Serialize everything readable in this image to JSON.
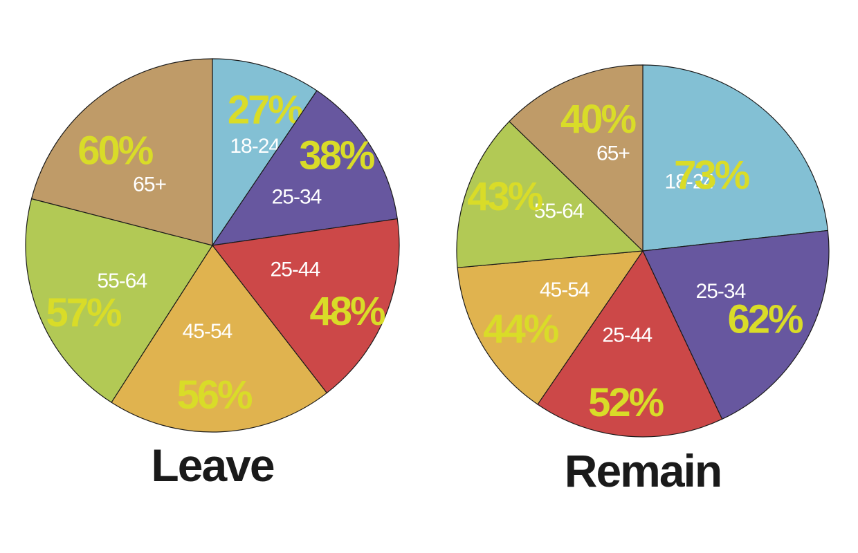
{
  "chart_data": [
    {
      "type": "pie",
      "title": "Leave",
      "unit": "%",
      "slices": [
        {
          "category": "18-24",
          "value": 27,
          "color": "#83c0d4"
        },
        {
          "category": "25-34",
          "value": 38,
          "color": "#67579f"
        },
        {
          "category": "25-44",
          "value": 48,
          "color": "#cc4848"
        },
        {
          "category": "45-54",
          "value": 56,
          "color": "#e0b34f"
        },
        {
          "category": "55-64",
          "value": 57,
          "color": "#b2c955"
        },
        {
          "category": "65+",
          "value": 60,
          "color": "#bf9b68"
        }
      ]
    },
    {
      "type": "pie",
      "title": "Remain",
      "unit": "%",
      "slices": [
        {
          "category": "18-24",
          "value": 73,
          "color": "#83c0d4"
        },
        {
          "category": "25-34",
          "value": 62,
          "color": "#67579f"
        },
        {
          "category": "25-44",
          "value": 52,
          "color": "#cc4848"
        },
        {
          "category": "45-54",
          "value": 44,
          "color": "#e0b34f"
        },
        {
          "category": "55-64",
          "value": 43,
          "color": "#b2c955"
        },
        {
          "category": "65+",
          "value": 40,
          "color": "#bf9b68"
        }
      ]
    }
  ],
  "colors": {
    "percent_label": "#d9dc28",
    "category_label": "#ffffff",
    "outline": "#1a1a1a",
    "title": "#1a1a1a"
  }
}
